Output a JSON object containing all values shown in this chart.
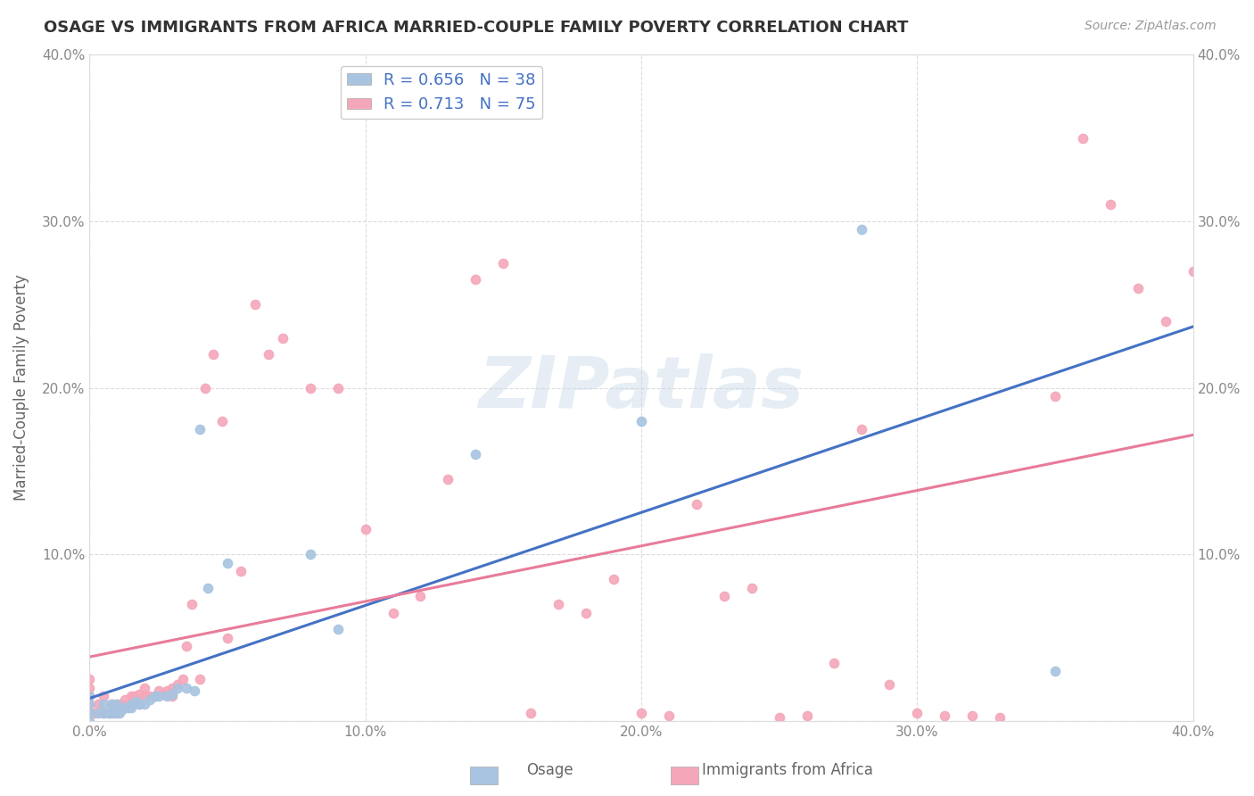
{
  "title": "OSAGE VS IMMIGRANTS FROM AFRICA MARRIED-COUPLE FAMILY POVERTY CORRELATION CHART",
  "source": "Source: ZipAtlas.com",
  "ylabel": "Married-Couple Family Poverty",
  "xlim": [
    0.0,
    0.4
  ],
  "ylim": [
    0.0,
    0.4
  ],
  "xtick_vals": [
    0.0,
    0.1,
    0.2,
    0.3,
    0.4
  ],
  "ytick_vals": [
    0.0,
    0.1,
    0.2,
    0.3,
    0.4
  ],
  "legend_labels": [
    "Osage",
    "Immigrants from Africa"
  ],
  "osage_R": "0.656",
  "osage_N": "38",
  "africa_R": "0.713",
  "africa_N": "75",
  "osage_color": "#a8c4e0",
  "africa_color": "#f4a7b9",
  "osage_line_color": "#4472c4",
  "africa_line_color": "#e87b9a",
  "watermark": "ZIPatlas",
  "background_color": "#ffffff",
  "grid_color": "#cccccc",
  "title_color": "#333333",
  "legend_text_color": "#4472c4",
  "osage_x": [
    0.0,
    0.0,
    0.0,
    0.0,
    0.003,
    0.005,
    0.005,
    0.007,
    0.008,
    0.008,
    0.009,
    0.01,
    0.011,
    0.012,
    0.013,
    0.014,
    0.015,
    0.015,
    0.017,
    0.018,
    0.02,
    0.022,
    0.024,
    0.025,
    0.028,
    0.03,
    0.032,
    0.035,
    0.038,
    0.04,
    0.043,
    0.05,
    0.08,
    0.09,
    0.14,
    0.2,
    0.28,
    0.35
  ],
  "osage_y": [
    0.0,
    0.005,
    0.01,
    0.015,
    0.005,
    0.005,
    0.01,
    0.005,
    0.005,
    0.01,
    0.005,
    0.01,
    0.005,
    0.007,
    0.008,
    0.008,
    0.008,
    0.01,
    0.012,
    0.01,
    0.01,
    0.013,
    0.015,
    0.015,
    0.015,
    0.016,
    0.02,
    0.02,
    0.018,
    0.175,
    0.08,
    0.095,
    0.1,
    0.055,
    0.16,
    0.18,
    0.295,
    0.03
  ],
  "africa_x": [
    0.0,
    0.0,
    0.0,
    0.0,
    0.0,
    0.002,
    0.003,
    0.005,
    0.005,
    0.007,
    0.008,
    0.009,
    0.01,
    0.01,
    0.012,
    0.013,
    0.015,
    0.015,
    0.016,
    0.018,
    0.018,
    0.02,
    0.02,
    0.022,
    0.024,
    0.025,
    0.027,
    0.028,
    0.03,
    0.03,
    0.032,
    0.034,
    0.035,
    0.037,
    0.04,
    0.042,
    0.045,
    0.048,
    0.05,
    0.055,
    0.06,
    0.065,
    0.07,
    0.08,
    0.09,
    0.1,
    0.11,
    0.12,
    0.13,
    0.14,
    0.15,
    0.16,
    0.17,
    0.18,
    0.19,
    0.2,
    0.21,
    0.22,
    0.23,
    0.24,
    0.25,
    0.26,
    0.27,
    0.28,
    0.29,
    0.3,
    0.31,
    0.32,
    0.33,
    0.35,
    0.36,
    0.37,
    0.38,
    0.39,
    0.4
  ],
  "africa_y": [
    0.005,
    0.01,
    0.015,
    0.02,
    0.025,
    0.005,
    0.01,
    0.005,
    0.015,
    0.005,
    0.01,
    0.008,
    0.005,
    0.01,
    0.01,
    0.013,
    0.01,
    0.015,
    0.015,
    0.01,
    0.016,
    0.015,
    0.02,
    0.015,
    0.015,
    0.018,
    0.016,
    0.018,
    0.015,
    0.02,
    0.022,
    0.025,
    0.045,
    0.07,
    0.025,
    0.2,
    0.22,
    0.18,
    0.05,
    0.09,
    0.25,
    0.22,
    0.23,
    0.2,
    0.2,
    0.115,
    0.065,
    0.075,
    0.145,
    0.265,
    0.275,
    0.005,
    0.07,
    0.065,
    0.085,
    0.005,
    0.003,
    0.13,
    0.075,
    0.08,
    0.002,
    0.003,
    0.035,
    0.175,
    0.022,
    0.005,
    0.003,
    0.003,
    0.002,
    0.195,
    0.35,
    0.31,
    0.26,
    0.24,
    0.27
  ]
}
